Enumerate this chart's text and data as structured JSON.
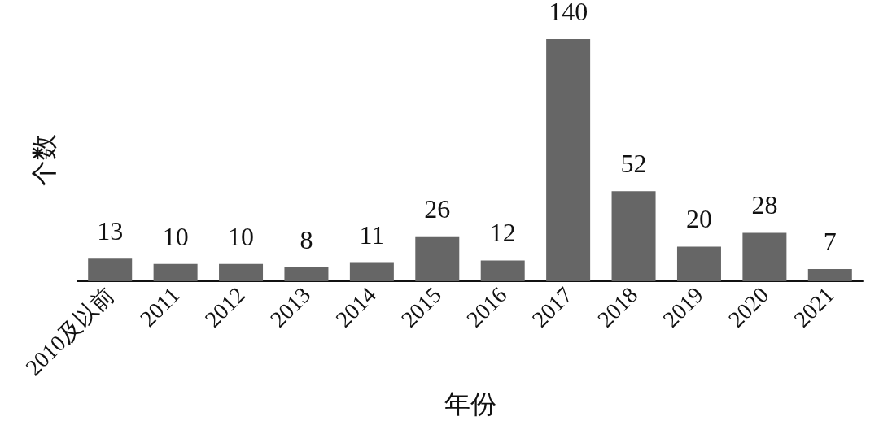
{
  "chart_data": {
    "type": "bar",
    "xlabel": "年份",
    "ylabel": "个数",
    "categories": [
      "2010及以前",
      "2011",
      "2012",
      "2013",
      "2014",
      "2015",
      "2016",
      "2017",
      "2018",
      "2019",
      "2020",
      "2021"
    ],
    "values": [
      13,
      10,
      10,
      8,
      11,
      26,
      12,
      140,
      52,
      20,
      28,
      7
    ],
    "color": "#666666",
    "data_labels": true,
    "grid": false
  }
}
